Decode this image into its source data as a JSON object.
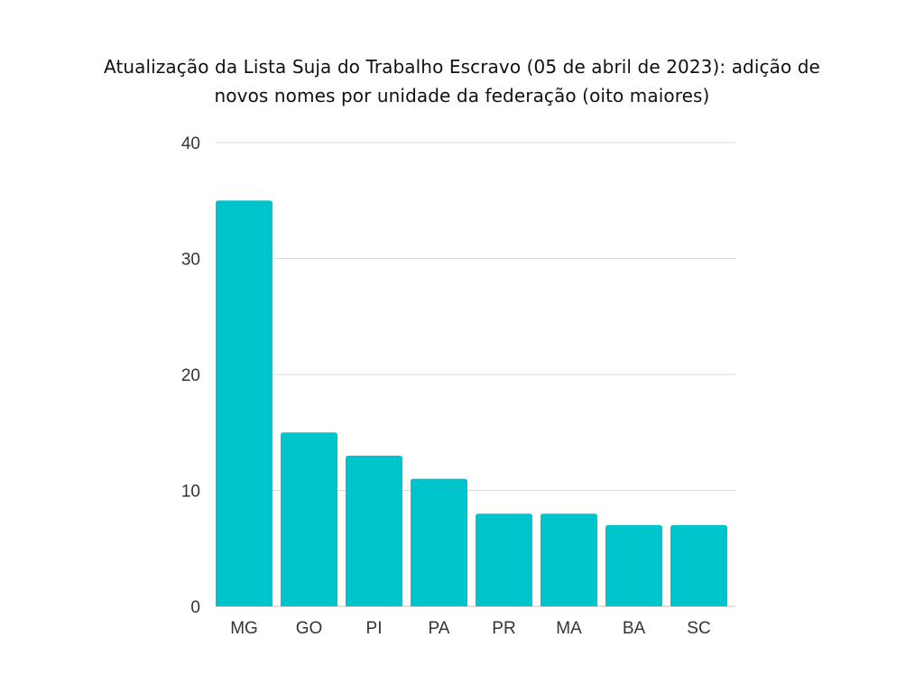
{
  "chart_data": {
    "type": "bar",
    "title_lines": [
      "Atualização da Lista Suja do Trabalho Escravo (05 de abril de 2023): adição de",
      "novos nomes por unidade da federação (oito maiores)"
    ],
    "xlabel": "",
    "ylabel": "",
    "categories": [
      "MG",
      "GO",
      "PI",
      "PA",
      "PR",
      "MA",
      "BA",
      "SC"
    ],
    "values": [
      35,
      15,
      13,
      11,
      8,
      8,
      7,
      7
    ],
    "ylim": [
      0,
      40
    ],
    "yticks": [
      "0",
      "10",
      "20",
      "30",
      "40"
    ],
    "grid": true,
    "legend": "none",
    "colors": {
      "bar": "#00c4cc",
      "grid": "#d9d9d9",
      "baseline": "#bfbfbf"
    }
  }
}
